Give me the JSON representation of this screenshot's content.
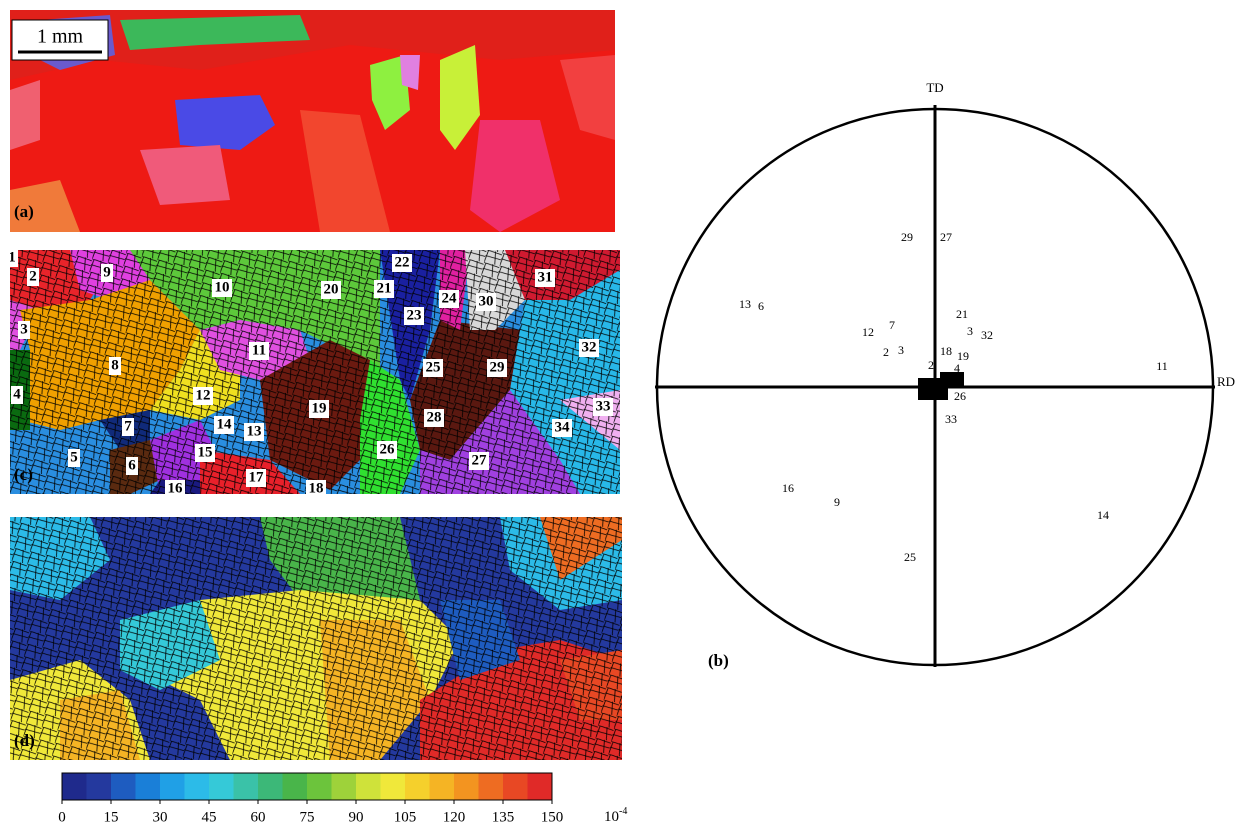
{
  "panels": {
    "a": {
      "label": "(a)",
      "scale_bar": "1 mm"
    },
    "b": {
      "label": "(b)",
      "axis_top": "TD",
      "axis_right": "RD",
      "poles": [
        "29",
        "27",
        "13",
        "6",
        "12",
        "7",
        "2",
        "3",
        "21",
        "3",
        "32",
        "18",
        "19",
        "2",
        "4",
        "26",
        "33",
        "11",
        "16",
        "9",
        "14",
        "25"
      ]
    },
    "c": {
      "label": "(c)",
      "grains": [
        "1",
        "2",
        "9",
        "10",
        "20",
        "22",
        "21",
        "24",
        "30",
        "31",
        "3",
        "23",
        "32",
        "11",
        "8",
        "25",
        "29",
        "19",
        "4",
        "12",
        "33",
        "14",
        "13",
        "28",
        "34",
        "7",
        "26",
        "27",
        "5",
        "6",
        "15",
        "17",
        "16",
        "18"
      ]
    },
    "d": {
      "label": "(d)"
    }
  },
  "colorbar": {
    "ticks": [
      0,
      15,
      30,
      45,
      60,
      75,
      90,
      105,
      120,
      135,
      150
    ],
    "unit_base": "10",
    "unit_exponent": "-4",
    "colors": [
      "#1f2a8c",
      "#24399e",
      "#1e5cc0",
      "#1a7fd8",
      "#20a0e6",
      "#2cbbe8",
      "#35c9d8",
      "#3ac2a8",
      "#3cb878",
      "#49b54a",
      "#6cc43c",
      "#9ed23a",
      "#cfe23a",
      "#f0e83a",
      "#f5d02c",
      "#f5b424",
      "#f39420",
      "#ee6c22",
      "#e84824",
      "#e02a28"
    ]
  }
}
